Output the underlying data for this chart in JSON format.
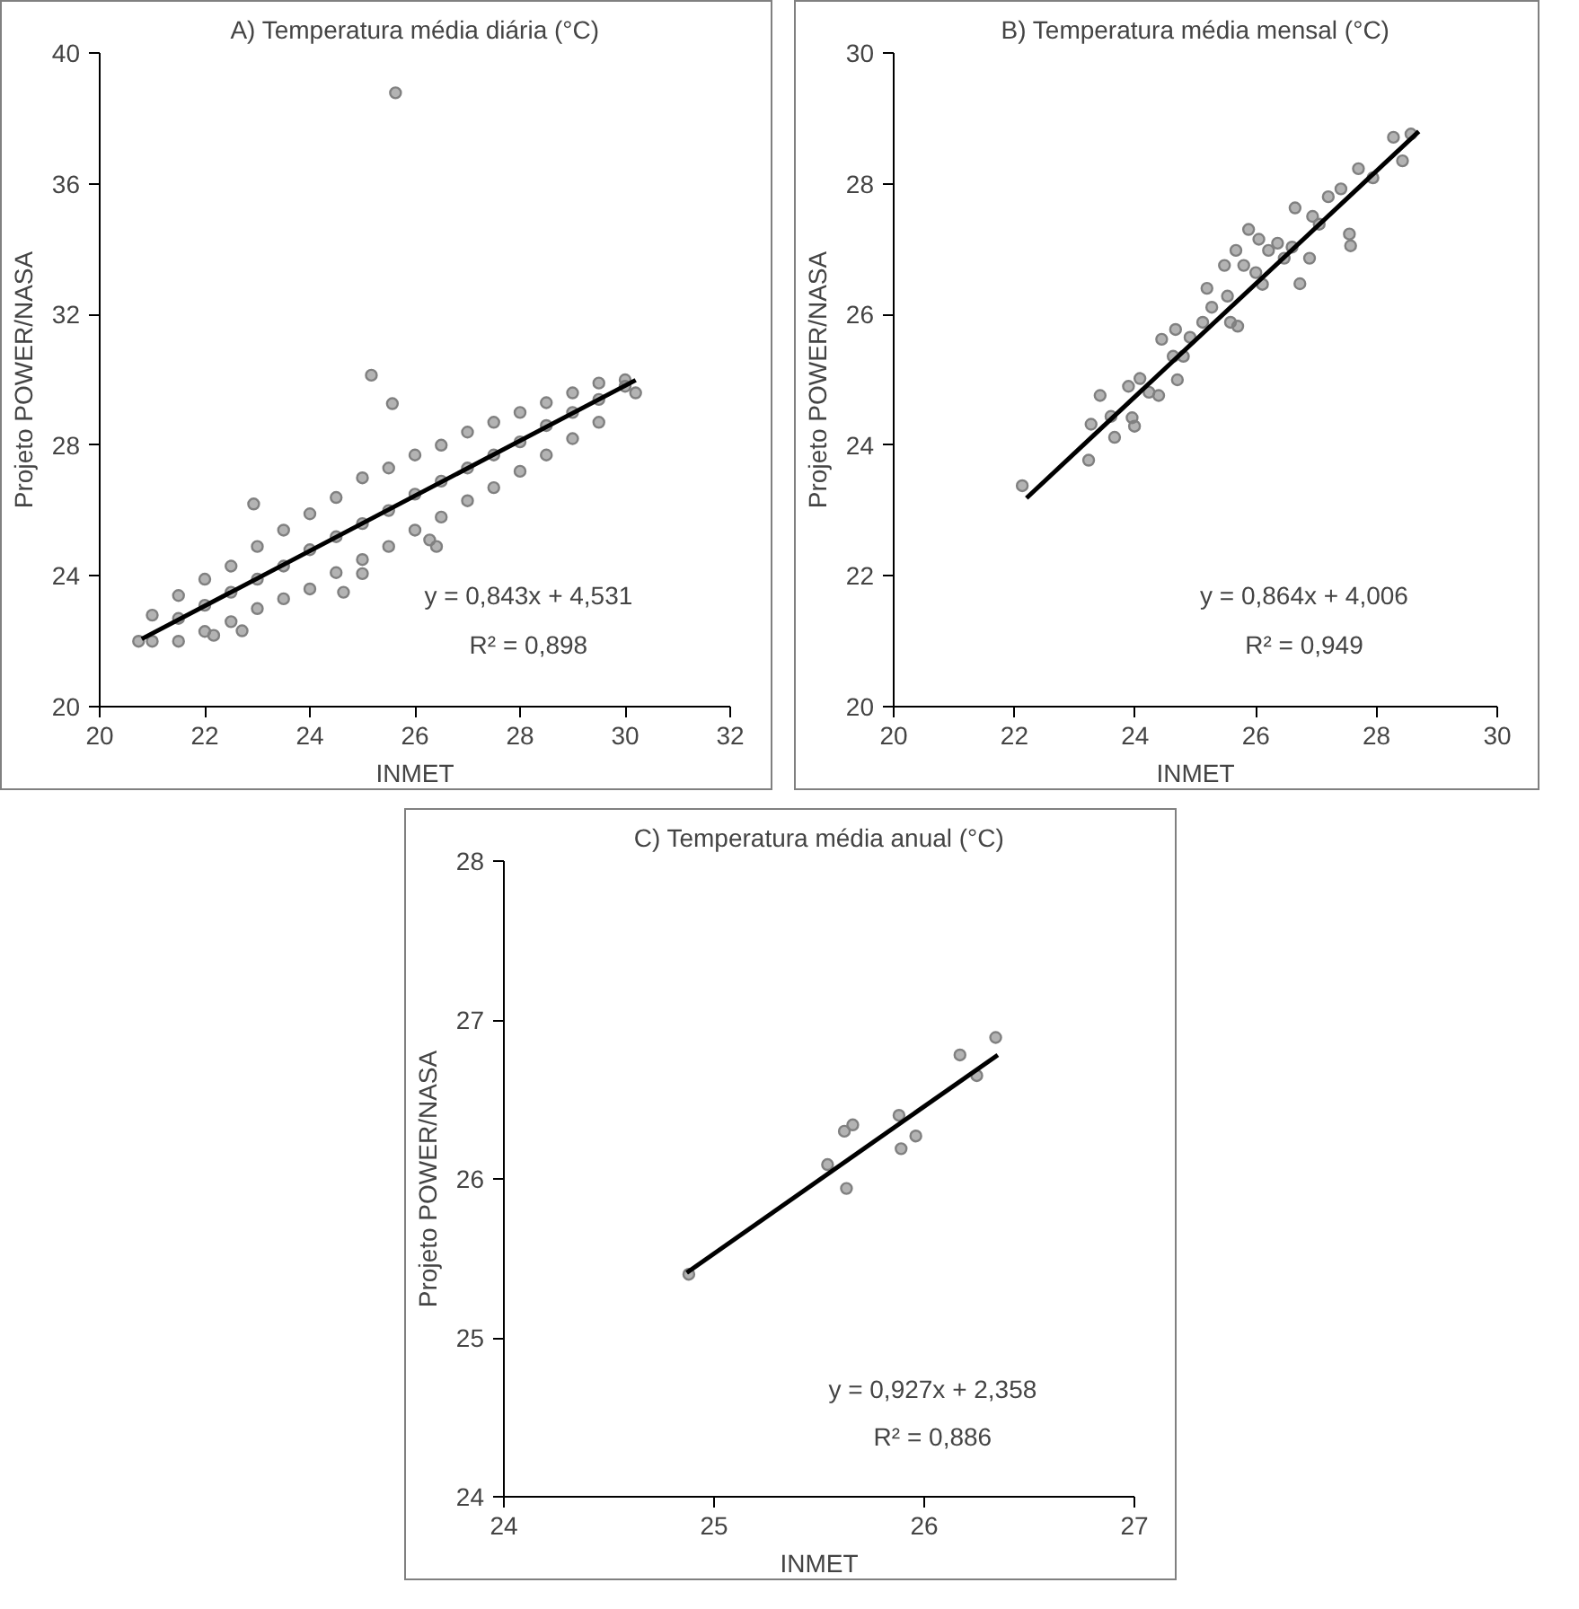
{
  "chart_data": [
    {
      "type": "scatter",
      "title": "A) Temperatura média diária (°C)",
      "xlabel": "INMET",
      "ylabel": "Projeto POWER/NASA",
      "xlim": [
        20,
        32
      ],
      "ylim": [
        20,
        40
      ],
      "xticks": [
        20,
        22,
        24,
        26,
        28,
        30,
        32
      ],
      "yticks": [
        20,
        24,
        28,
        32,
        36,
        40
      ],
      "grid": false,
      "annotations": [
        "y = 0,843x + 4,531",
        "R² = 0,898"
      ],
      "series": [
        {
          "color": "#808080",
          "marker": "circle",
          "x": [
            25.63,
            25.17,
            25.57,
            22.93,
            22.17,
            22.71,
            20.74,
            26.41,
            26.28,
            24.64,
            25.0,
            21.0,
            21.0,
            21.5,
            21.5,
            21.5,
            22.0,
            22.0,
            22.0,
            22.5,
            22.5,
            22.5,
            23.0,
            23.0,
            23.0,
            23.5,
            23.5,
            23.5,
            24.0,
            24.0,
            24.0,
            24.5,
            24.5,
            24.5,
            25.0,
            25.0,
            25.0,
            25.5,
            25.5,
            25.5,
            26.0,
            26.0,
            26.0,
            26.5,
            26.5,
            26.5,
            27.0,
            27.0,
            27.0,
            27.5,
            27.5,
            27.5,
            28.0,
            28.0,
            28.0,
            28.5,
            28.5,
            28.5,
            29.0,
            29.0,
            29.0,
            29.5,
            29.5,
            29.5,
            30.0,
            30.0,
            30.2
          ],
          "values": [
            38.78,
            30.14,
            29.27,
            26.2,
            22.18,
            22.32,
            22.0,
            24.9,
            25.1,
            23.5,
            24.07,
            22.8,
            22.0,
            23.4,
            22.7,
            22.0,
            23.9,
            23.1,
            22.3,
            24.3,
            23.5,
            22.6,
            24.9,
            23.9,
            23.0,
            25.4,
            24.3,
            23.3,
            25.9,
            24.8,
            23.6,
            26.4,
            25.2,
            24.1,
            27.0,
            25.6,
            24.5,
            27.3,
            26.0,
            24.9,
            27.7,
            26.5,
            25.4,
            28.0,
            26.9,
            25.8,
            28.4,
            27.3,
            26.3,
            28.7,
            27.7,
            26.7,
            29.0,
            28.1,
            27.2,
            29.3,
            28.6,
            27.7,
            29.6,
            29.0,
            28.2,
            29.9,
            29.4,
            28.7,
            30.0,
            29.8,
            29.6
          ]
        },
        {
          "type": "line",
          "color": "#000000",
          "x": [
            20.8,
            30.2
          ],
          "values": [
            22.07,
            29.99
          ]
        }
      ]
    },
    {
      "type": "scatter",
      "title": "B) Temperatura média mensal (°C)",
      "xlabel": "INMET",
      "ylabel": "Projeto POWER/NASA",
      "xlim": [
        20,
        30
      ],
      "ylim": [
        20,
        30
      ],
      "xticks": [
        20,
        22,
        24,
        26,
        28,
        30
      ],
      "yticks": [
        20,
        22,
        24,
        26,
        28,
        30
      ],
      "grid": false,
      "annotations": [
        "y = 0,864x + 4,006",
        "R² = 0,949"
      ],
      "series": [
        {
          "color": "#808080",
          "marker": "circle",
          "x": [
            22.13,
            23.23,
            23.42,
            23.27,
            23.6,
            23.66,
            23.95,
            23.99,
            23.89,
            24.08,
            24.23,
            24.39,
            24.44,
            24.67,
            24.63,
            24.7,
            24.8,
            24.91,
            25.12,
            25.19,
            25.27,
            25.53,
            25.58,
            25.7,
            25.48,
            25.67,
            25.88,
            25.8,
            26.0,
            26.11,
            26.21,
            26.05,
            26.36,
            26.47,
            26.6,
            26.65,
            26.73,
            26.89,
            26.94,
            27.05,
            27.2,
            27.41,
            27.55,
            27.57,
            27.7,
            27.88,
            27.94,
            28.28,
            28.43,
            28.57
          ],
          "values": [
            23.38,
            23.77,
            24.76,
            24.32,
            24.44,
            24.12,
            24.42,
            24.29,
            24.9,
            25.02,
            24.81,
            24.76,
            25.62,
            25.77,
            25.36,
            25.0,
            25.36,
            25.65,
            25.88,
            26.4,
            26.11,
            26.28,
            25.88,
            25.82,
            26.75,
            26.98,
            27.3,
            26.75,
            26.64,
            26.46,
            26.98,
            27.15,
            27.09,
            26.86,
            27.03,
            27.63,
            26.47,
            26.86,
            27.5,
            27.38,
            27.8,
            27.92,
            27.23,
            27.05,
            28.23,
            null,
            28.09,
            28.71,
            28.35,
            28.76
          ]
        },
        {
          "type": "line",
          "color": "#000000",
          "x": [
            22.2,
            28.7
          ],
          "values": [
            23.19,
            28.8
          ]
        }
      ]
    },
    {
      "type": "scatter",
      "title": "C) Temperatura média anual (°C)",
      "xlabel": "INMET",
      "ylabel": "Projeto POWER/NASA",
      "xlim": [
        24,
        27
      ],
      "ylim": [
        24,
        28
      ],
      "xticks": [
        24,
        25,
        26,
        27
      ],
      "yticks": [
        24,
        25,
        26,
        27,
        28
      ],
      "grid": false,
      "annotations": [
        "y = 0,927x + 2,358",
        "R² = 0,886"
      ],
      "series": [
        {
          "color": "#808080",
          "marker": "circle",
          "x": [
            24.88,
            25.54,
            25.63,
            25.62,
            25.66,
            25.88,
            25.89,
            25.96,
            26.17,
            26.25,
            26.34
          ],
          "values": [
            25.4,
            26.09,
            25.94,
            26.3,
            26.34,
            26.4,
            26.19,
            26.27,
            26.78,
            26.65,
            26.89
          ]
        },
        {
          "type": "line",
          "color": "#000000",
          "x": [
            24.87,
            26.35
          ],
          "values": [
            25.41,
            26.78
          ]
        }
      ]
    }
  ]
}
